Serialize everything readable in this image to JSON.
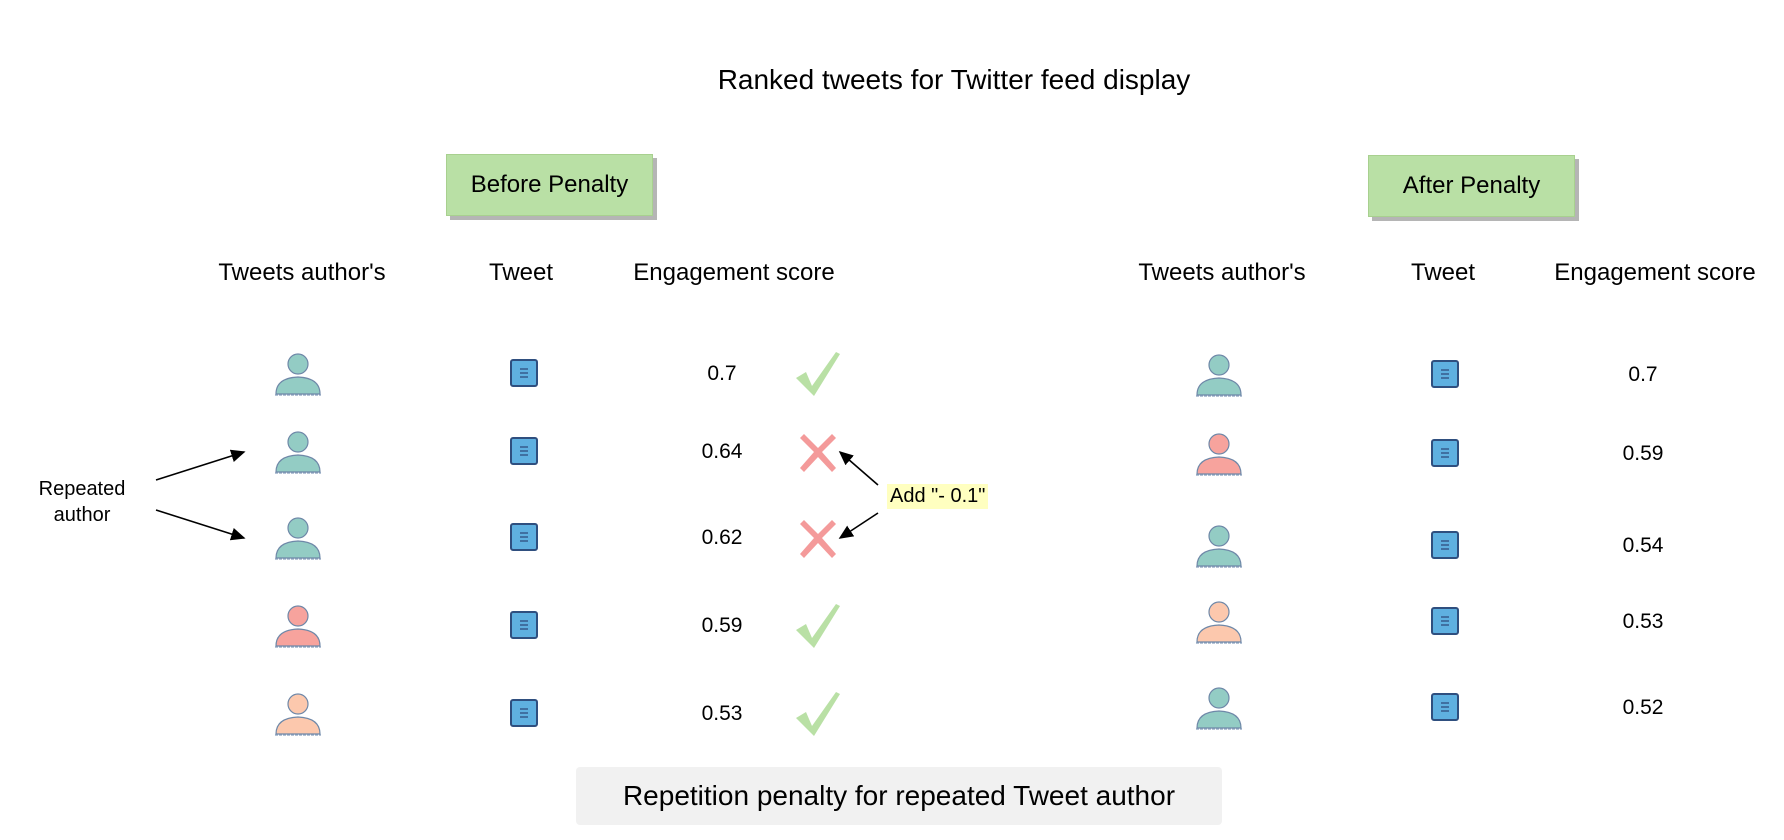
{
  "title": "Ranked tweets for Twitter feed display",
  "before": {
    "label": "Before Penalty",
    "headers": {
      "author": "Tweets author's",
      "tweet": "Tweet",
      "score": "Engagement score"
    },
    "rows": [
      {
        "author_color": "teal",
        "score": "0.7",
        "mark": "check"
      },
      {
        "author_color": "teal",
        "score": "0.64",
        "mark": "cross"
      },
      {
        "author_color": "teal",
        "score": "0.62",
        "mark": "cross"
      },
      {
        "author_color": "red",
        "score": "0.59",
        "mark": "check"
      },
      {
        "author_color": "peach",
        "score": "0.53",
        "mark": "check"
      }
    ]
  },
  "after": {
    "label": "After Penalty",
    "headers": {
      "author": "Tweets author's",
      "tweet": "Tweet",
      "score": "Engagement score"
    },
    "rows": [
      {
        "author_color": "teal",
        "score": "0.7"
      },
      {
        "author_color": "red",
        "score": "0.59"
      },
      {
        "author_color": "teal",
        "score": "0.54"
      },
      {
        "author_color": "peach",
        "score": "0.53"
      },
      {
        "author_color": "teal",
        "score": "0.52"
      }
    ]
  },
  "annotations": {
    "repeated_author": "Repeated\nauthor",
    "penalty_note": "Add \"- 0.1\""
  },
  "footer": "Repetition penalty for repeated Tweet author",
  "colors": {
    "teal": "#93ccc4",
    "red": "#f7a39d",
    "peach": "#fcc8ad",
    "tweet": "#5fb0e0",
    "check": "#b9e0a5",
    "cross": "#f49a9a",
    "label_bg": "#b9e0a5"
  },
  "icons": {
    "author": "person-icon",
    "tweet": "document-icon",
    "check": "checkmark-icon",
    "cross": "cross-icon"
  }
}
